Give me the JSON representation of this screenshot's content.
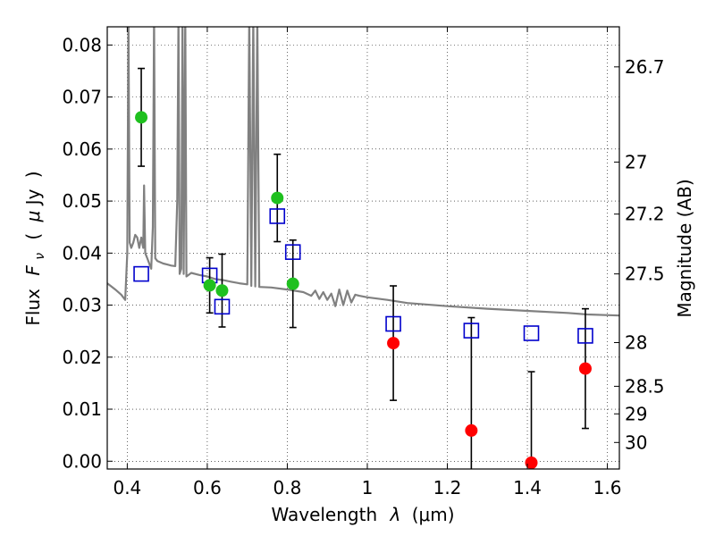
{
  "chart_data": {
    "type": "scatter",
    "title": "",
    "xlabel_text": "Wavelength",
    "xlabel_symbol": "λ",
    "xlabel_unit": "(μm)",
    "ylabel_text": "Flux",
    "ylabel_symbol": "F",
    "ylabel_subscript": "ν",
    "ylabel_unit_open": "(",
    "ylabel_unit_symbol": "μ",
    "ylabel_unit_rest": "Jy",
    "ylabel_unit_close": ")",
    "y2label": "Magnitude (AB)",
    "xlim": [
      0.35,
      1.63
    ],
    "ylim": [
      -0.0015,
      0.0835
    ],
    "grid": true,
    "x_ticks": [
      {
        "value": 0.4,
        "label": "0.4"
      },
      {
        "value": 0.6,
        "label": "0.6"
      },
      {
        "value": 0.8,
        "label": "0.8"
      },
      {
        "value": 1.0,
        "label": "1"
      },
      {
        "value": 1.2,
        "label": "1.2"
      },
      {
        "value": 1.4,
        "label": "1.4"
      },
      {
        "value": 1.6,
        "label": "1.6"
      }
    ],
    "y_ticks": [
      {
        "value": 0.0,
        "label": "0.00"
      },
      {
        "value": 0.01,
        "label": "0.01"
      },
      {
        "value": 0.02,
        "label": "0.02"
      },
      {
        "value": 0.03,
        "label": "0.03"
      },
      {
        "value": 0.04,
        "label": "0.04"
      },
      {
        "value": 0.05,
        "label": "0.05"
      },
      {
        "value": 0.06,
        "label": "0.06"
      },
      {
        "value": 0.07,
        "label": "0.07"
      },
      {
        "value": 0.08,
        "label": "0.08"
      }
    ],
    "y2_ticks": [
      {
        "flux": 0.0758,
        "label": "26.7"
      },
      {
        "flux": 0.0575,
        "label": "27"
      },
      {
        "flux": 0.0475,
        "label": "27.2"
      },
      {
        "flux": 0.036,
        "label": "27.5"
      },
      {
        "flux": 0.0228,
        "label": "28"
      },
      {
        "flux": 0.0144,
        "label": "28.5"
      },
      {
        "flux": 0.0091,
        "label": "29"
      },
      {
        "flux": 0.0036,
        "label": "30"
      }
    ],
    "colors": {
      "detection": "#1fc01f",
      "nondetection": "#ff0000",
      "model_photometry": "#0000cc",
      "sed": "#808080",
      "error_bar": "#000000",
      "grid": "#000000"
    },
    "series": [
      {
        "marker": "circle",
        "color": "#1fc01f",
        "points": [
          {
            "x": 0.435,
            "y": 0.0661,
            "err": 0.0094
          },
          {
            "x": 0.606,
            "y": 0.0338,
            "err": 0.0053
          },
          {
            "x": 0.637,
            "y": 0.0328,
            "err": 0.007
          },
          {
            "x": 0.775,
            "y": 0.0506,
            "err": 0.0084
          },
          {
            "x": 0.814,
            "y": 0.0341,
            "err": 0.0084
          }
        ]
      },
      {
        "marker": "circle",
        "color": "#ff0000",
        "points": [
          {
            "x": 1.065,
            "y": 0.0227,
            "err": 0.011
          },
          {
            "x": 1.26,
            "y": 0.0059,
            "err": 0.0217
          },
          {
            "x": 1.41,
            "y": -0.0003,
            "err": 0.0175
          },
          {
            "x": 1.545,
            "y": 0.0178,
            "err": 0.0115
          }
        ]
      },
      {
        "marker": "square",
        "color": "#0000cc",
        "points": [
          {
            "x": 0.435,
            "y": 0.036
          },
          {
            "x": 0.606,
            "y": 0.0357
          },
          {
            "x": 0.637,
            "y": 0.0297
          },
          {
            "x": 0.775,
            "y": 0.0471
          },
          {
            "x": 0.814,
            "y": 0.0402
          },
          {
            "x": 1.065,
            "y": 0.0264
          },
          {
            "x": 1.26,
            "y": 0.0251
          },
          {
            "x": 1.41,
            "y": 0.0246
          },
          {
            "x": 1.545,
            "y": 0.0241
          }
        ]
      },
      {
        "marker": "line",
        "color": "#808080",
        "points": [
          {
            "x": 0.35,
            "y": 0.0342
          },
          {
            "x": 0.37,
            "y": 0.033
          },
          {
            "x": 0.385,
            "y": 0.032
          },
          {
            "x": 0.395,
            "y": 0.031
          },
          {
            "x": 0.4,
            "y": 0.04
          },
          {
            "x": 0.403,
            "y": 0.086
          },
          {
            "x": 0.406,
            "y": 0.042
          },
          {
            "x": 0.41,
            "y": 0.041
          },
          {
            "x": 0.415,
            "y": 0.042
          },
          {
            "x": 0.42,
            "y": 0.0435
          },
          {
            "x": 0.425,
            "y": 0.043
          },
          {
            "x": 0.43,
            "y": 0.041
          },
          {
            "x": 0.435,
            "y": 0.043
          },
          {
            "x": 0.44,
            "y": 0.041
          },
          {
            "x": 0.442,
            "y": 0.053
          },
          {
            "x": 0.445,
            "y": 0.04
          },
          {
            "x": 0.45,
            "y": 0.039
          },
          {
            "x": 0.455,
            "y": 0.038
          },
          {
            "x": 0.46,
            "y": 0.037
          },
          {
            "x": 0.464,
            "y": 0.045
          },
          {
            "x": 0.467,
            "y": 0.086
          },
          {
            "x": 0.47,
            "y": 0.039
          },
          {
            "x": 0.475,
            "y": 0.0385
          },
          {
            "x": 0.49,
            "y": 0.038
          },
          {
            "x": 0.5,
            "y": 0.0378
          },
          {
            "x": 0.51,
            "y": 0.0376
          },
          {
            "x": 0.52,
            "y": 0.0375
          },
          {
            "x": 0.525,
            "y": 0.05
          },
          {
            "x": 0.528,
            "y": 0.086
          },
          {
            "x": 0.531,
            "y": 0.036
          },
          {
            "x": 0.535,
            "y": 0.037
          },
          {
            "x": 0.538,
            "y": 0.086
          },
          {
            "x": 0.541,
            "y": 0.036
          },
          {
            "x": 0.545,
            "y": 0.086
          },
          {
            "x": 0.548,
            "y": 0.0355
          },
          {
            "x": 0.56,
            "y": 0.0362
          },
          {
            "x": 0.58,
            "y": 0.0358
          },
          {
            "x": 0.6,
            "y": 0.0355
          },
          {
            "x": 0.62,
            "y": 0.035
          },
          {
            "x": 0.64,
            "y": 0.0348
          },
          {
            "x": 0.66,
            "y": 0.0345
          },
          {
            "x": 0.68,
            "y": 0.0342
          },
          {
            "x": 0.7,
            "y": 0.034
          },
          {
            "x": 0.705,
            "y": 0.086
          },
          {
            "x": 0.71,
            "y": 0.0337
          },
          {
            "x": 0.715,
            "y": 0.086
          },
          {
            "x": 0.72,
            "y": 0.0336
          },
          {
            "x": 0.725,
            "y": 0.086
          },
          {
            "x": 0.73,
            "y": 0.0335
          },
          {
            "x": 0.76,
            "y": 0.0334
          },
          {
            "x": 0.8,
            "y": 0.033
          },
          {
            "x": 0.84,
            "y": 0.0325
          },
          {
            "x": 0.86,
            "y": 0.0318
          },
          {
            "x": 0.87,
            "y": 0.0328
          },
          {
            "x": 0.88,
            "y": 0.0312
          },
          {
            "x": 0.89,
            "y": 0.0325
          },
          {
            "x": 0.9,
            "y": 0.031
          },
          {
            "x": 0.91,
            "y": 0.0322
          },
          {
            "x": 0.92,
            "y": 0.0298
          },
          {
            "x": 0.93,
            "y": 0.033
          },
          {
            "x": 0.94,
            "y": 0.03
          },
          {
            "x": 0.95,
            "y": 0.0328
          },
          {
            "x": 0.96,
            "y": 0.0305
          },
          {
            "x": 0.97,
            "y": 0.032
          },
          {
            "x": 0.98,
            "y": 0.0318
          },
          {
            "x": 1.0,
            "y": 0.0315
          },
          {
            "x": 1.05,
            "y": 0.031
          },
          {
            "x": 1.1,
            "y": 0.0304
          },
          {
            "x": 1.2,
            "y": 0.0298
          },
          {
            "x": 1.3,
            "y": 0.0293
          },
          {
            "x": 1.4,
            "y": 0.0289
          },
          {
            "x": 1.5,
            "y": 0.0285
          },
          {
            "x": 1.55,
            "y": 0.0282
          },
          {
            "x": 1.63,
            "y": 0.028
          }
        ]
      }
    ]
  }
}
